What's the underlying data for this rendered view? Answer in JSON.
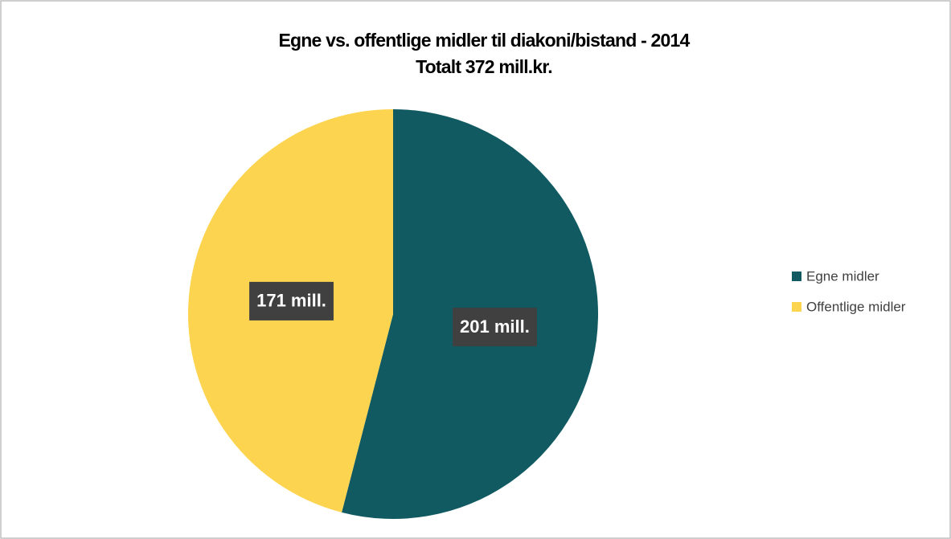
{
  "chart_data": {
    "type": "pie",
    "title": "Egne vs. offentlige midler til diakoni/bistand - 2014",
    "subtitle": "Totalt 372 mill.kr.",
    "categories": [
      "Egne midler",
      "Offentlige midler"
    ],
    "values": [
      201,
      171
    ],
    "value_labels": [
      "201 mill.",
      "171 mill."
    ],
    "colors": [
      "#115a62",
      "#fdd44f"
    ],
    "legend": "right"
  }
}
